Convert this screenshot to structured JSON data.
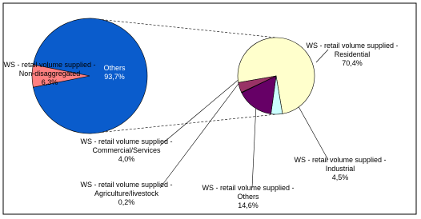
{
  "chart_data": [
    {
      "type": "pie",
      "categories": [
        "Others",
        "WS - retail volume supplied - Non-disaggregated"
      ],
      "values": [
        93.7,
        6.3
      ],
      "value_labels": [
        "93,7%",
        "6,3%"
      ],
      "colors": [
        "#0a5ccc",
        "#ff8080"
      ]
    },
    {
      "type": "pie",
      "categories": [
        "WS - retail volume supplied - Residential",
        "WS - retail volume supplied - Industrial",
        "WS - retail volume supplied - Others",
        "WS - retail volume supplied - Agriculture/livestock",
        "WS - retail volume supplied - Commercial/Services"
      ],
      "values": [
        70.4,
        4.5,
        14.6,
        0.2,
        4.0
      ],
      "value_labels": [
        "70,4%",
        "4,5%",
        "14,6%",
        "0,2%",
        "4,0%"
      ],
      "colors": [
        "#ffffcc",
        "#ccffff",
        "#660066",
        "#cc99ff",
        "#993366"
      ]
    }
  ]
}
